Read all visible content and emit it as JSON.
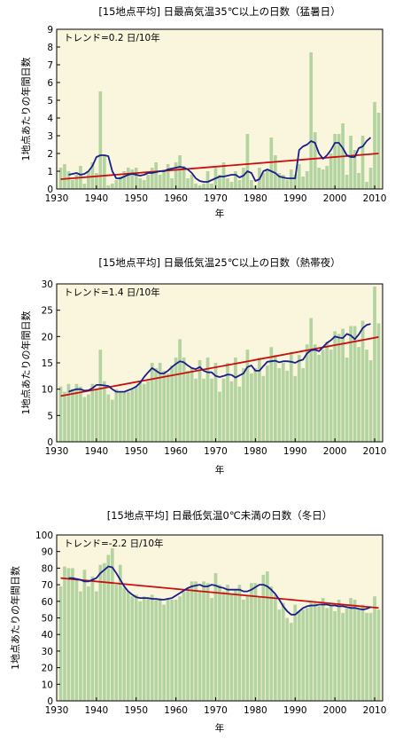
{
  "chart_data": [
    {
      "type": "bar",
      "title": "[15地点平均] 日最高気温35℃以上の日数（猛暑日）",
      "xlabel": "年",
      "ylabel": "1地点あたりの年間日数",
      "trend_label": "トレンド=0.2 日/10年",
      "xlim": [
        1930,
        2012
      ],
      "ylim": [
        0,
        9
      ],
      "x_ticks": [
        1930,
        1940,
        1950,
        1960,
        1970,
        1980,
        1990,
        2000,
        2010
      ],
      "y_ticks": [
        0,
        1,
        2,
        3,
        4,
        5,
        6,
        7,
        8,
        9
      ],
      "x": [
        1931,
        1932,
        1933,
        1934,
        1935,
        1936,
        1937,
        1938,
        1939,
        1940,
        1941,
        1942,
        1943,
        1944,
        1945,
        1946,
        1947,
        1948,
        1949,
        1950,
        1951,
        1952,
        1953,
        1954,
        1955,
        1956,
        1957,
        1958,
        1959,
        1960,
        1961,
        1962,
        1963,
        1964,
        1965,
        1966,
        1967,
        1968,
        1969,
        1970,
        1971,
        1972,
        1973,
        1974,
        1975,
        1976,
        1977,
        1978,
        1979,
        1980,
        1981,
        1982,
        1983,
        1984,
        1985,
        1986,
        1987,
        1988,
        1989,
        1990,
        1991,
        1992,
        1993,
        1994,
        1995,
        1996,
        1997,
        1998,
        1999,
        2000,
        2001,
        2002,
        2003,
        2004,
        2005,
        2006,
        2007,
        2008,
        2009,
        2010,
        2011
      ],
      "values": [
        1.2,
        1.4,
        1.0,
        0.5,
        0.8,
        1.3,
        0.3,
        1.0,
        1.5,
        0.9,
        5.5,
        1.9,
        0.2,
        0.3,
        0.5,
        0.7,
        1.0,
        1.2,
        1.1,
        1.2,
        0.6,
        0.5,
        0.8,
        1.2,
        1.5,
        0.8,
        1.1,
        1.4,
        0.6,
        1.5,
        1.9,
        1.3,
        0.6,
        0.8,
        0.3,
        0.2,
        0.3,
        1.0,
        0.3,
        1.2,
        0.8,
        1.5,
        0.6,
        0.4,
        1.0,
        0.5,
        1.2,
        3.1,
        0.5,
        0.2,
        1.2,
        0.9,
        1.1,
        2.9,
        1.9,
        0.9,
        0.8,
        0.5,
        1.1,
        0.8,
        1.4,
        0.7,
        1.0,
        7.7,
        3.2,
        1.2,
        1.1,
        1.3,
        2.0,
        3.1,
        3.1,
        3.7,
        0.8,
        3.0,
        2.2,
        0.9,
        3.0,
        0.4,
        1.2,
        4.9,
        4.3
      ],
      "moving_average": {
        "x": [
          1933,
          1934,
          1935,
          1936,
          1937,
          1938,
          1939,
          1940,
          1941,
          1942,
          1943,
          1944,
          1945,
          1946,
          1947,
          1948,
          1949,
          1950,
          1951,
          1952,
          1953,
          1954,
          1955,
          1956,
          1957,
          1958,
          1959,
          1960,
          1961,
          1962,
          1963,
          1964,
          1965,
          1966,
          1967,
          1968,
          1969,
          1970,
          1971,
          1972,
          1973,
          1974,
          1975,
          1976,
          1977,
          1978,
          1979,
          1980,
          1981,
          1982,
          1983,
          1984,
          1985,
          1986,
          1987,
          1988,
          1989,
          1990,
          1991,
          1992,
          1993,
          1994,
          1995,
          1996,
          1997,
          1998,
          1999,
          2000,
          2001,
          2002,
          2003,
          2004,
          2005,
          2006,
          2007,
          2008,
          2009
        ],
        "values": [
          0.8,
          0.85,
          0.9,
          0.8,
          0.85,
          1.0,
          1.3,
          1.8,
          1.9,
          1.9,
          1.85,
          1.0,
          0.6,
          0.6,
          0.7,
          0.8,
          0.85,
          0.8,
          0.75,
          0.8,
          0.9,
          0.9,
          0.95,
          1.0,
          1.0,
          1.1,
          1.15,
          1.2,
          1.25,
          1.2,
          1.1,
          0.9,
          0.6,
          0.45,
          0.4,
          0.4,
          0.5,
          0.6,
          0.7,
          0.7,
          0.75,
          0.8,
          0.8,
          0.65,
          0.75,
          1.0,
          0.9,
          0.45,
          0.55,
          1.0,
          1.1,
          1.0,
          0.9,
          0.7,
          0.65,
          0.6,
          0.6,
          0.6,
          2.2,
          2.4,
          2.5,
          2.7,
          2.6,
          2.0,
          1.7,
          1.9,
          2.2,
          2.6,
          2.6,
          2.3,
          1.9,
          1.8,
          1.8,
          2.3,
          2.4,
          2.7,
          2.9
        ]
      },
      "trend_line": {
        "x": [
          1931,
          2011
        ],
        "values": [
          0.55,
          2.0
        ]
      }
    },
    {
      "type": "bar",
      "title": "[15地点平均] 日最低気温25℃以上の日数（熱帯夜）",
      "xlabel": "年",
      "ylabel": "1地点あたりの年間日数",
      "trend_label": "トレンド=1.4 日/10年",
      "xlim": [
        1930,
        2012
      ],
      "ylim": [
        0,
        30
      ],
      "x_ticks": [
        1930,
        1940,
        1950,
        1960,
        1970,
        1980,
        1990,
        2000,
        2010
      ],
      "y_ticks": [
        0,
        5,
        10,
        15,
        20,
        25,
        30
      ],
      "x": [
        1931,
        1932,
        1933,
        1934,
        1935,
        1936,
        1937,
        1938,
        1939,
        1940,
        1941,
        1942,
        1943,
        1944,
        1945,
        1946,
        1947,
        1948,
        1949,
        1950,
        1951,
        1952,
        1953,
        1954,
        1955,
        1956,
        1957,
        1958,
        1959,
        1960,
        1961,
        1962,
        1963,
        1964,
        1965,
        1966,
        1967,
        1968,
        1969,
        1970,
        1971,
        1972,
        1973,
        1974,
        1975,
        1976,
        1977,
        1978,
        1979,
        1980,
        1981,
        1982,
        1983,
        1984,
        1985,
        1986,
        1987,
        1988,
        1989,
        1990,
        1991,
        1992,
        1993,
        1994,
        1995,
        1996,
        1997,
        1998,
        1999,
        2000,
        2001,
        2002,
        2003,
        2004,
        2005,
        2006,
        2007,
        2008,
        2009,
        2010,
        2011
      ],
      "values": [
        10.5,
        9.5,
        11,
        10,
        11,
        10.5,
        8.5,
        9,
        11,
        10,
        17.5,
        11.5,
        9,
        8,
        10,
        9.5,
        9.5,
        9.5,
        10,
        10.5,
        11.5,
        11,
        11.5,
        15,
        14,
        15,
        13.5,
        13,
        14.5,
        16,
        19.5,
        16,
        13.5,
        14,
        12,
        15.5,
        12,
        16,
        12,
        15,
        9.5,
        12,
        15,
        11.5,
        16,
        10.5,
        14,
        17.5,
        13,
        14,
        16,
        12.5,
        14.5,
        18,
        16.5,
        14,
        15,
        13.5,
        17,
        12.5,
        16.5,
        14,
        18.5,
        23.5,
        18.5,
        16.5,
        17.5,
        19,
        17.5,
        21,
        20.5,
        21.5,
        16,
        22,
        22,
        18,
        23,
        17.5,
        15.5,
        29.5,
        22.5
      ],
      "moving_average": {
        "x": [
          1933,
          1934,
          1935,
          1936,
          1937,
          1938,
          1939,
          1940,
          1941,
          1942,
          1943,
          1944,
          1945,
          1946,
          1947,
          1948,
          1949,
          1950,
          1951,
          1952,
          1953,
          1954,
          1955,
          1956,
          1957,
          1958,
          1959,
          1960,
          1961,
          1962,
          1963,
          1964,
          1965,
          1966,
          1967,
          1968,
          1969,
          1970,
          1971,
          1972,
          1973,
          1974,
          1975,
          1976,
          1977,
          1978,
          1979,
          1980,
          1981,
          1982,
          1983,
          1984,
          1985,
          1986,
          1987,
          1988,
          1989,
          1990,
          1991,
          1992,
          1993,
          1994,
          1995,
          1996,
          1997,
          1998,
          1999,
          2000,
          2001,
          2002,
          2003,
          2004,
          2005,
          2006,
          2007,
          2008,
          2009
        ],
        "values": [
          9.5,
          9.8,
          10,
          10,
          9.7,
          9.8,
          10.2,
          10.8,
          10.8,
          10.7,
          10.6,
          10,
          9.5,
          9.5,
          9.5,
          9.8,
          10.1,
          10.5,
          11.2,
          12.3,
          13.2,
          14,
          13.5,
          13,
          13,
          13.5,
          14.2,
          14.8,
          15.3,
          15.1,
          14.5,
          14,
          13.8,
          14.2,
          13.5,
          13.2,
          13.2,
          12.5,
          12.3,
          12.5,
          12.8,
          12.7,
          12.2,
          12.6,
          13,
          14.2,
          14.5,
          13.5,
          13.5,
          14.4,
          15.2,
          15.3,
          15.4,
          15.1,
          15.3,
          15.3,
          15.2,
          15,
          15.4,
          15.6,
          16.8,
          17.4,
          17.5,
          17.2,
          18,
          18.8,
          19.3,
          20,
          19.8,
          19.7,
          20.5,
          20.2,
          19.5,
          20.4,
          21.6,
          22.2,
          22.4
        ]
      },
      "trend_line": {
        "x": [
          1931,
          2011
        ],
        "values": [
          8.7,
          19.9
        ]
      }
    },
    {
      "type": "bar",
      "title": "[15地点平均] 日最低気温0℃未満の日数（冬日）",
      "xlabel": "年",
      "ylabel": "1地点あたりの年間日数",
      "trend_label": "トレンド=-2.2 日/10年",
      "xlim": [
        1930,
        2012
      ],
      "ylim": [
        0,
        100
      ],
      "x_ticks": [
        1930,
        1940,
        1950,
        1960,
        1970,
        1980,
        1990,
        2000,
        2010
      ],
      "y_ticks": [
        0,
        10,
        20,
        30,
        40,
        50,
        60,
        70,
        80,
        90,
        100
      ],
      "x": [
        1931,
        1932,
        1933,
        1934,
        1935,
        1936,
        1937,
        1938,
        1939,
        1940,
        1941,
        1942,
        1943,
        1944,
        1945,
        1946,
        1947,
        1948,
        1949,
        1950,
        1951,
        1952,
        1953,
        1954,
        1955,
        1956,
        1957,
        1958,
        1959,
        1960,
        1961,
        1962,
        1963,
        1964,
        1965,
        1966,
        1967,
        1968,
        1969,
        1970,
        1971,
        1972,
        1973,
        1974,
        1975,
        1976,
        1977,
        1978,
        1979,
        1980,
        1981,
        1982,
        1983,
        1984,
        1985,
        1986,
        1987,
        1988,
        1989,
        1990,
        1991,
        1992,
        1993,
        1994,
        1995,
        1996,
        1997,
        1998,
        1999,
        2000,
        2001,
        2002,
        2003,
        2004,
        2005,
        2006,
        2007,
        2008,
        2009,
        2010,
        2011
      ],
      "values": [
        69,
        81,
        80,
        80,
        74,
        66,
        79,
        69,
        75,
        66,
        82,
        83,
        88,
        92,
        70,
        82,
        68,
        66,
        63,
        64,
        60,
        63,
        62,
        64,
        61,
        62,
        58,
        62,
        61,
        61,
        63,
        66,
        68,
        72,
        72,
        66,
        72,
        71,
        62,
        77,
        70,
        66,
        70,
        64,
        67,
        70,
        61,
        63,
        71,
        71,
        63,
        76,
        78,
        69,
        64,
        55,
        59,
        50,
        47,
        58,
        54,
        55,
        56,
        60,
        60,
        57,
        62,
        56,
        58,
        54,
        61,
        53,
        56,
        62,
        61,
        55,
        58,
        53,
        53,
        63,
        55
      ],
      "moving_average": {
        "x": [
          1933,
          1934,
          1935,
          1936,
          1937,
          1938,
          1939,
          1940,
          1941,
          1942,
          1943,
          1944,
          1945,
          1946,
          1947,
          1948,
          1949,
          1950,
          1951,
          1952,
          1953,
          1954,
          1955,
          1956,
          1957,
          1958,
          1959,
          1960,
          1961,
          1962,
          1963,
          1964,
          1965,
          1966,
          1967,
          1968,
          1969,
          1970,
          1971,
          1972,
          1973,
          1974,
          1975,
          1976,
          1977,
          1978,
          1979,
          1980,
          1981,
          1982,
          1983,
          1984,
          1985,
          1986,
          1987,
          1988,
          1989,
          1990,
          1991,
          1992,
          1993,
          1994,
          1995,
          1996,
          1997,
          1998,
          1999,
          2000,
          2001,
          2002,
          2003,
          2004,
          2005,
          2006,
          2007,
          2008,
          2009
        ],
        "values": [
          74,
          74,
          73.5,
          73,
          72,
          72,
          73,
          74,
          77,
          79,
          81,
          80.5,
          77,
          73,
          69,
          66,
          64,
          62.5,
          62,
          62,
          62,
          61.5,
          61.5,
          61,
          61,
          61.5,
          62,
          63.5,
          65,
          66.5,
          68,
          69,
          69.5,
          70,
          69,
          69,
          70,
          69.5,
          68.5,
          68,
          67,
          67,
          67,
          67,
          66,
          66,
          67,
          68.5,
          70,
          70,
          69,
          67,
          64.5,
          61,
          57,
          54,
          52,
          52,
          54,
          56,
          57,
          57.5,
          57.5,
          58,
          58,
          58,
          57.5,
          57.5,
          57,
          57,
          56.5,
          56,
          56,
          55.5,
          55,
          55.5,
          56.5
        ]
      },
      "trend_line": {
        "x": [
          1931,
          2011
        ],
        "values": [
          74,
          56
        ]
      }
    }
  ],
  "colors": {
    "background": "#faf6de",
    "bar": "#b3d3a0",
    "moving_average": "#1a1f8a",
    "trend_line": "#cc0d0d",
    "axis": "#000000"
  }
}
